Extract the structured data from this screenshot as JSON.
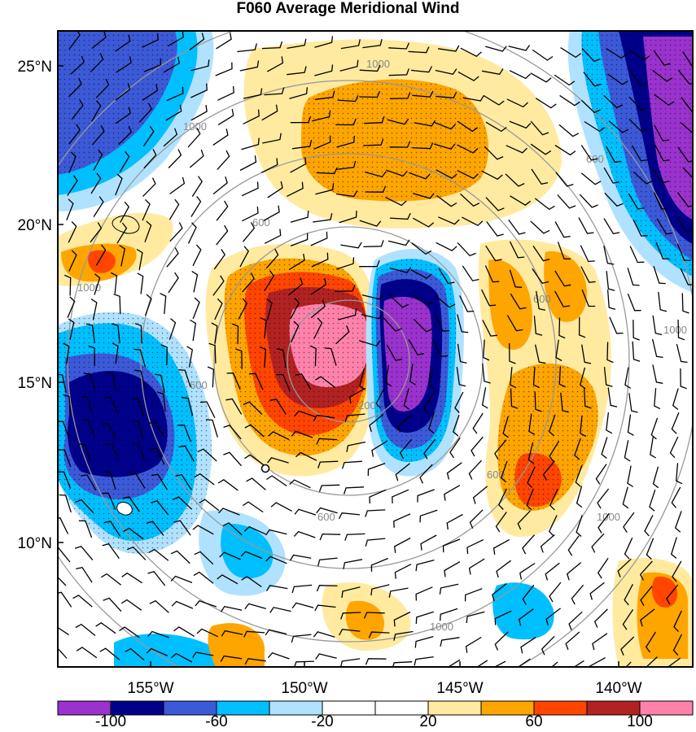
{
  "title": "F060 Average Meridional Wind",
  "latitude_labels": [
    "25°N",
    "20°N",
    "15°N",
    "10°N"
  ],
  "longitude_labels": [
    "155°W",
    "150°W",
    "145°W",
    "140°W"
  ],
  "colorbar": {
    "labels": [
      "-100",
      "-60",
      "-20",
      "20",
      "60",
      "100"
    ],
    "colors": [
      "#9a32cd",
      "#00008b",
      "#3c59d8",
      "#00bfff",
      "#b0e2ff",
      "#ffffff",
      "#ffffff",
      "#ffeaa0",
      "#ffa500",
      "#ff4500",
      "#b22222",
      "#ff82ab"
    ]
  },
  "range_rings": {
    "labels": [
      "1000",
      "1000",
      "1000",
      "600",
      "600",
      "600",
      "600",
      "200",
      "600",
      "600",
      "1000",
      "1000",
      "1000"
    ]
  },
  "colors": {
    "purple": "#9a32cd",
    "navy": "#00008b",
    "blue": "#3c59d8",
    "cyan": "#00bfff",
    "light_blue": "#b0e2ff",
    "white": "#ffffff",
    "light_yellow": "#ffeaa0",
    "orange": "#ffa500",
    "orange_red": "#ff4500",
    "firebrick": "#b22222",
    "pink": "#ff82ab",
    "ring": "#999999"
  }
}
